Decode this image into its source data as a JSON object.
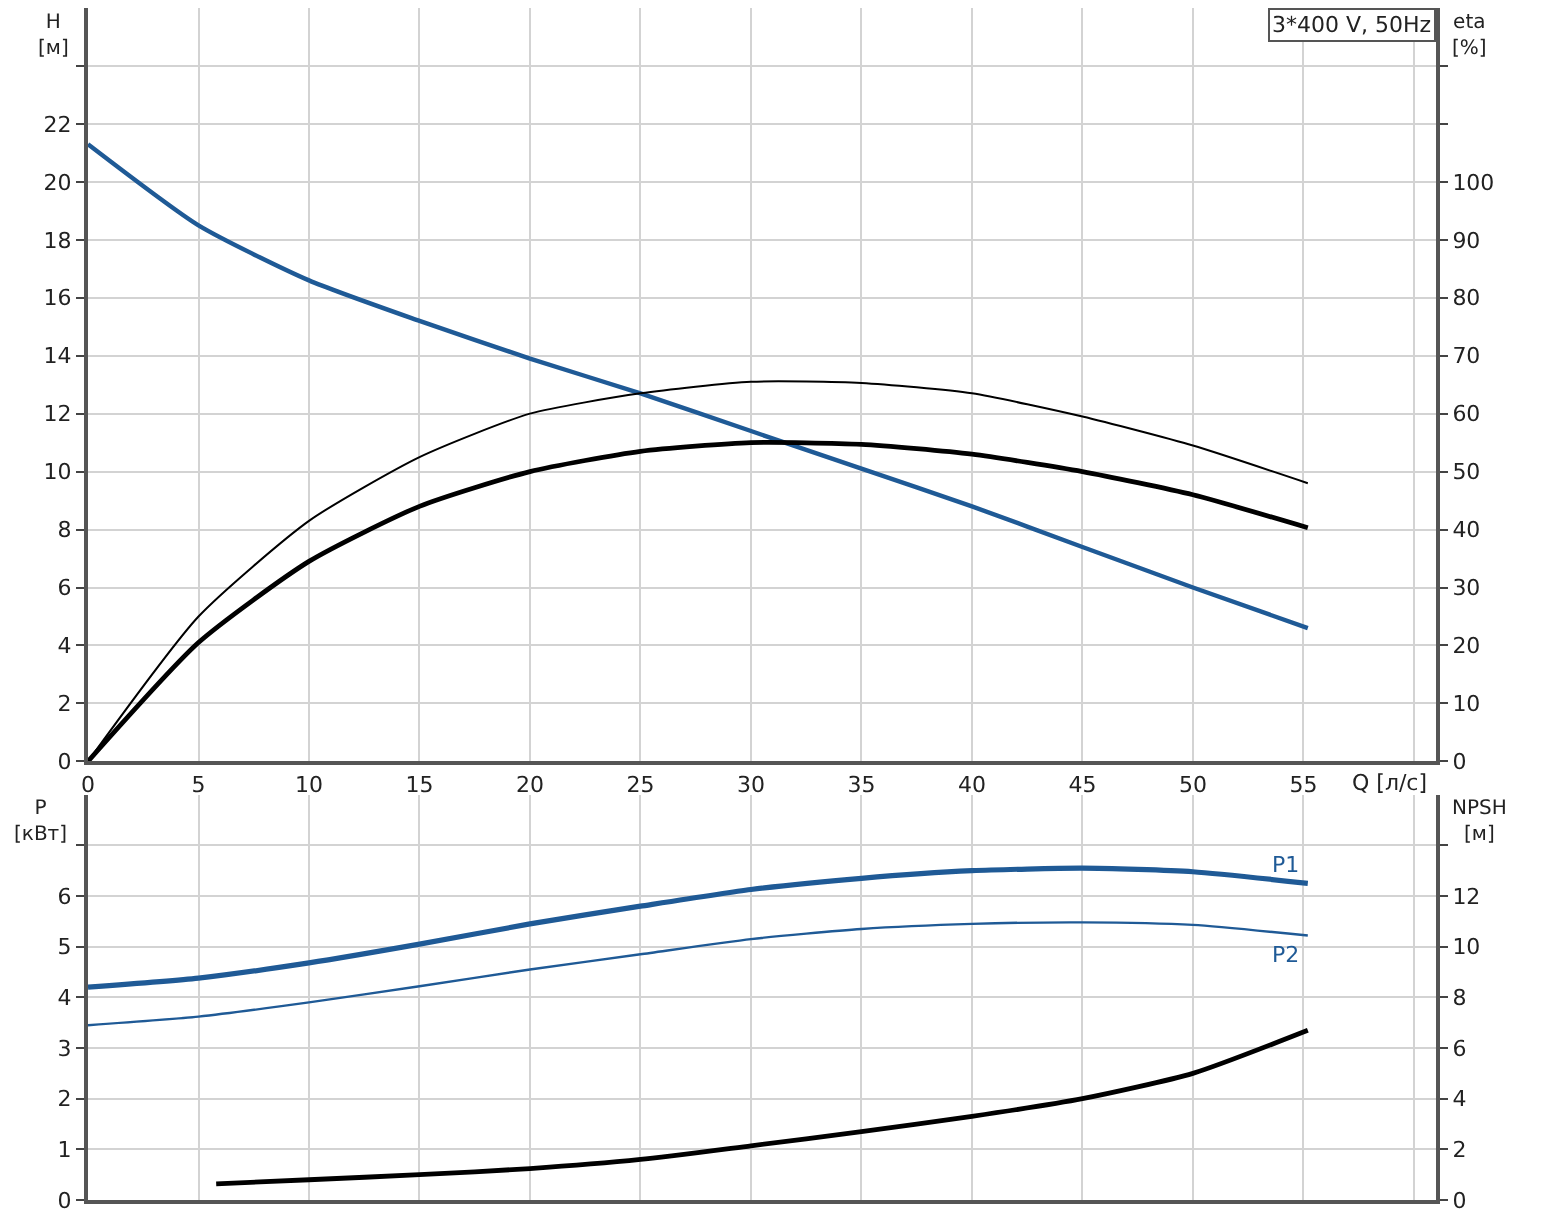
{
  "chart_data": [
    {
      "type": "line",
      "ylabel": "H\n[м]",
      "y2label": "eta\n[%]",
      "xlabel": "Q [л/с]",
      "annotations": [
        "3*400 V, 50Hz"
      ],
      "x": [
        0,
        5,
        10,
        15,
        20,
        25,
        30,
        35,
        40,
        45,
        50,
        55.2
      ],
      "series": [
        {
          "color": "#1f5a96",
          "values": [
            21.3,
            18.5,
            16.6,
            15.2,
            13.9,
            12.7,
            11.4,
            10.1,
            8.8,
            7.4,
            6.0,
            4.6
          ]
        },
        {
          "color": "#000000",
          "axis": "y2",
          "values": [
            0,
            25,
            41.5,
            52.5,
            60,
            63.5,
            65.5,
            65.3,
            63.5,
            59.5,
            54.5,
            48
          ]
        },
        {
          "color": "#000000",
          "axis": "y2",
          "values": [
            0,
            20.5,
            34.5,
            44,
            50,
            53.5,
            55,
            54.7,
            53,
            50,
            46,
            40.3
          ]
        }
      ],
      "xlim": [
        0,
        61
      ],
      "xticks": [
        0,
        5,
        10,
        15,
        20,
        25,
        30,
        35,
        40,
        45,
        50,
        55,
        {
          "value": 60,
          "label": null
        }
      ],
      "ylim": [
        0,
        26
      ],
      "yticks": [
        0,
        2,
        4,
        6,
        8,
        10,
        12,
        14,
        16,
        18,
        20,
        22,
        {
          "value": 24,
          "label": null
        }
      ],
      "y2lim": [
        0,
        130
      ],
      "y2ticks": [
        0,
        10,
        20,
        30,
        40,
        50,
        60,
        70,
        80,
        90,
        100,
        {
          "value": 110,
          "label": null
        },
        {
          "value": 120,
          "label": null
        }
      ],
      "grid": true,
      "marker": "none",
      "line_style": "solid"
    },
    {
      "type": "line",
      "ylabel": "P\n[кВт]",
      "y2label": "NPSH\n[м]",
      "x": [
        0,
        5,
        10,
        15,
        20,
        25,
        30,
        35,
        40,
        45,
        50,
        55.2
      ],
      "series": [
        {
          "name": "P1",
          "color": "#1f5a96",
          "values": [
            4.2,
            4.38,
            4.68,
            5.05,
            5.45,
            5.8,
            6.13,
            6.35,
            6.5,
            6.55,
            6.48,
            6.25
          ]
        },
        {
          "name": "P2",
          "color": "#1f5a96",
          "values": [
            3.45,
            3.62,
            3.9,
            4.22,
            4.55,
            4.85,
            5.15,
            5.35,
            5.45,
            5.48,
            5.43,
            5.22
          ]
        },
        {
          "color": "#000000",
          "axis": "y2",
          "x": [
            5.8,
            10,
            15,
            20,
            25,
            30,
            35,
            40,
            45,
            50,
            55.2
          ],
          "values": [
            0.64,
            0.8,
            1.0,
            1.24,
            1.6,
            2.14,
            2.7,
            3.3,
            4.0,
            5.0,
            6.7
          ]
        }
      ],
      "xlim": [
        0,
        61
      ],
      "xticks": [
        0,
        5,
        10,
        15,
        20,
        25,
        30,
        35,
        40,
        45,
        50,
        55,
        {
          "value": 60,
          "label": null
        }
      ],
      "ylim": [
        0,
        8
      ],
      "yticks": [
        0,
        1,
        2,
        3,
        4,
        5,
        6,
        {
          "value": 7,
          "label": null
        }
      ],
      "y2lim": [
        0,
        16
      ],
      "y2ticks": [
        0,
        2,
        4,
        6,
        8,
        10,
        12,
        {
          "value": 14,
          "label": null
        }
      ],
      "tick_labels": "y",
      "grid": true,
      "marker": "none",
      "line_style": "solid"
    }
  ]
}
